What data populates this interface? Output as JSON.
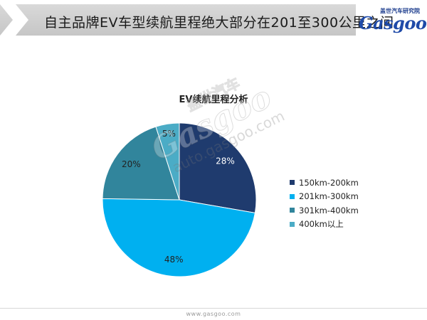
{
  "header": {
    "title": "自主品牌EV车型续航里程绝大部分在201至300公里之间"
  },
  "brand": {
    "cn_label": "盖世汽车研究院",
    "logo_text": "Gasgoo"
  },
  "watermark": {
    "cn_text": "盖世汽车",
    "logo_text": "Gasgoo",
    "url_text": "auto.gasgoo.com"
  },
  "footer": {
    "url": "www.gasgoo.com"
  },
  "colors": {
    "header_bar": "#cfcfcf",
    "slice_150_200": "#1f3b6e",
    "slice_201_300": "#00b0f0",
    "slice_301_400": "#31859c",
    "slice_400_plus": "#4bacc6"
  },
  "chart_data": {
    "type": "pie",
    "title": "EV续航里程分析",
    "slices": [
      {
        "label": "150km-200km",
        "value": 28,
        "display": "28%",
        "color": "#1f3b6e",
        "label_color": "#ffffff"
      },
      {
        "label": "201km-300km",
        "value": 48,
        "display": "48%",
        "color": "#00b0f0",
        "label_color": "#222222"
      },
      {
        "label": "301km-400km",
        "value": 20,
        "display": "20%",
        "color": "#31859c",
        "label_color": "#222222"
      },
      {
        "label": "400km以上",
        "value": 5,
        "display": "5%",
        "color": "#4bacc6",
        "label_color": "#222222"
      }
    ],
    "legend_position": "right",
    "start_angle": "12 o'clock",
    "direction": "clockwise"
  }
}
